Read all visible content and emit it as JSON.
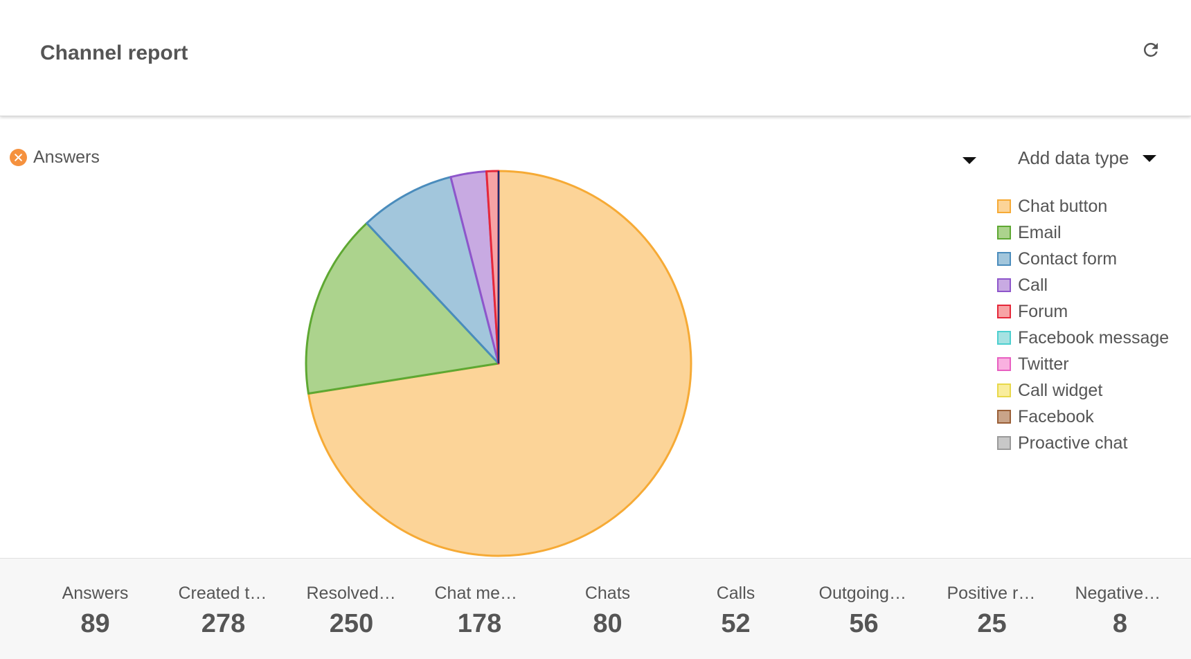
{
  "header": {
    "title": "Channel report",
    "refresh_icon": "refresh-icon"
  },
  "controls": {
    "series_chip_label": "Answers",
    "add_data_label": "Add data type"
  },
  "chart_data": {
    "type": "pie",
    "categories": [
      "Chat button",
      "Email",
      "Contact form",
      "Call",
      "Forum",
      "Facebook message",
      "Twitter",
      "Call widget",
      "Facebook",
      "Proactive chat"
    ],
    "values": [
      72.5,
      15.5,
      8.0,
      3.0,
      1.0,
      0.0,
      0.0,
      0.0,
      0.0,
      0.0
    ],
    "fill_colors": [
      "#fcd498",
      "#acd38d",
      "#a2c6dc",
      "#c8aae2",
      "#f7a3a5",
      "#a6e2e2",
      "#f9b1e0",
      "#f9ed9d",
      "#c9a489",
      "#c8c8c8"
    ],
    "stroke_colors": [
      "#f6aa35",
      "#5ea832",
      "#4a8cbc",
      "#8e56cb",
      "#e5283a",
      "#4ccfcf",
      "#e85fc1",
      "#e8d84a",
      "#9a5f37",
      "#9a9a9a"
    ],
    "legend_position": "right"
  },
  "stats": [
    {
      "label": "Answers",
      "value": "89"
    },
    {
      "label": "Created tickets",
      "value": "278"
    },
    {
      "label": "Resolved tickets",
      "value": "250"
    },
    {
      "label": "Chat messages",
      "value": "178"
    },
    {
      "label": "Chats",
      "value": "80"
    },
    {
      "label": "Calls",
      "value": "52"
    },
    {
      "label": "Outgoing calls",
      "value": "56"
    },
    {
      "label": "Positive ratings",
      "value": "25"
    },
    {
      "label": "Negative ratings",
      "value": "8"
    }
  ]
}
